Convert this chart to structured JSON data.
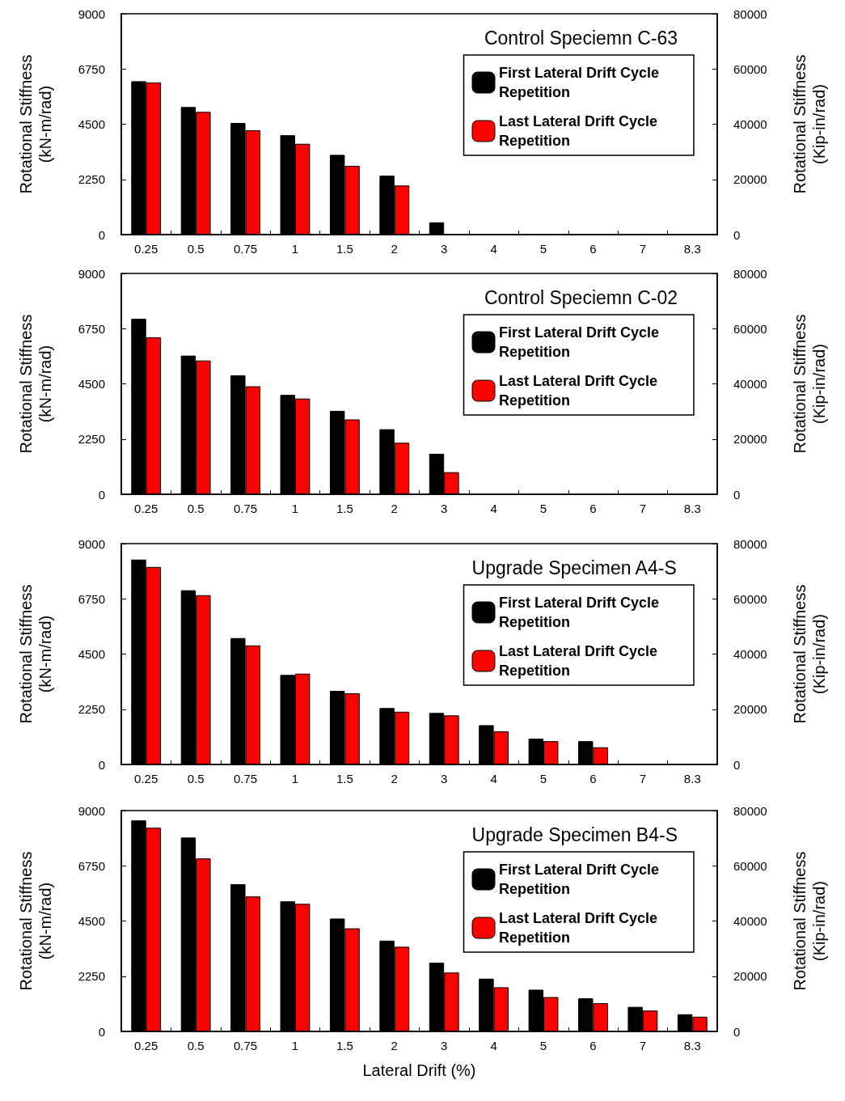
{
  "chart_data": [
    {
      "type": "bar",
      "title": "Control Speciemn C-63",
      "ylabel": "Rotational Stiffness\n(kN-m/rad)",
      "y2label": "Rotational Stiffness\n(Kip-in/rad)",
      "categories": [
        "0.25",
        "0.5",
        "0.75",
        "1",
        "1.5",
        "2",
        "3",
        "4",
        "5",
        "6",
        "7",
        "8.3"
      ],
      "series": [
        {
          "name": "First Lateral Drift Cycle Repetition",
          "color": "#000000",
          "values": [
            6250,
            5200,
            4550,
            4050,
            3250,
            2400,
            500,
            null,
            null,
            null,
            null,
            null
          ]
        },
        {
          "name": "Last Lateral Drift Cycle Repetition",
          "color": "#ff0000",
          "values": [
            6200,
            5000,
            4250,
            3700,
            2800,
            2000,
            null,
            null,
            null,
            null,
            null,
            null
          ]
        }
      ],
      "ylim": [
        0,
        9000
      ],
      "yticks": [
        0,
        2250,
        4500,
        6750,
        9000
      ],
      "y2lim": [
        0,
        80000
      ],
      "y2ticks": [
        0,
        20000,
        40000,
        60000,
        80000
      ],
      "grid": false,
      "legend": "top right"
    },
    {
      "type": "bar",
      "title": "Control Speciemn C-02",
      "ylabel": "Rotational Stiffness\n(kN-m/rad)",
      "y2label": "Rotational Stiffness\n(Kip-in/rad)",
      "categories": [
        "0.25",
        "0.5",
        "0.75",
        "1",
        "1.5",
        "2",
        "3",
        "4",
        "5",
        "6",
        "7",
        "8.3"
      ],
      "series": [
        {
          "name": "First Lateral Drift Cycle Repetition",
          "color": "#000000",
          "values": [
            7150,
            5650,
            4850,
            4050,
            3400,
            2650,
            1650,
            null,
            null,
            null,
            null,
            null
          ]
        },
        {
          "name": "Last Lateral Drift Cycle Repetition",
          "color": "#ff0000",
          "values": [
            6400,
            5450,
            4400,
            3900,
            3050,
            2100,
            900,
            null,
            null,
            null,
            null,
            null
          ]
        }
      ],
      "ylim": [
        0,
        9000
      ],
      "yticks": [
        0,
        2250,
        4500,
        6750,
        9000
      ],
      "y2lim": [
        0,
        80000
      ],
      "y2ticks": [
        0,
        20000,
        40000,
        60000,
        80000
      ],
      "grid": false,
      "legend": "top right"
    },
    {
      "type": "bar",
      "title": "Upgrade Specimen A4-S",
      "ylabel": "Rotational Stiffness\n(kN-m/rad)",
      "y2label": "Rotational Stiffness\n(Kip-in/rad)",
      "categories": [
        "0.25",
        "0.5",
        "0.75",
        "1",
        "1.5",
        "2",
        "3",
        "4",
        "5",
        "6",
        "7",
        "8.3"
      ],
      "series": [
        {
          "name": "First Lateral Drift Cycle Repetition",
          "color": "#000000",
          "values": [
            8350,
            7100,
            5150,
            3650,
            3000,
            2300,
            2100,
            1600,
            1050,
            950,
            null,
            null
          ]
        },
        {
          "name": "Last Lateral Drift Cycle Repetition",
          "color": "#ff0000",
          "values": [
            8050,
            6900,
            4850,
            3700,
            2900,
            2150,
            2000,
            1350,
            950,
            700,
            null,
            null
          ]
        }
      ],
      "ylim": [
        0,
        9000
      ],
      "yticks": [
        0,
        2250,
        4500,
        6750,
        9000
      ],
      "y2lim": [
        0,
        80000
      ],
      "y2ticks": [
        0,
        20000,
        40000,
        60000,
        80000
      ],
      "grid": false,
      "legend": "top right"
    },
    {
      "type": "bar",
      "title": "Upgrade Specimen B4-S",
      "xlabel": "Lateral Drift (%)",
      "ylabel": "Rotational Stiffness\n(kN-m/rad)",
      "y2label": "Rotational Stiffness\n(Kip-in/rad)",
      "categories": [
        "0.25",
        "0.5",
        "0.75",
        "1",
        "1.5",
        "2",
        "3",
        "4",
        "5",
        "6",
        "7",
        "8.3"
      ],
      "series": [
        {
          "name": "First Lateral Drift Cycle Repetition",
          "color": "#000000",
          "values": [
            8600,
            7900,
            6000,
            5300,
            4600,
            3700,
            2800,
            2150,
            1700,
            1350,
            1000,
            700
          ]
        },
        {
          "name": "Last Lateral Drift Cycle Repetition",
          "color": "#ff0000",
          "values": [
            8300,
            7050,
            5500,
            5200,
            4200,
            3450,
            2400,
            1800,
            1400,
            1150,
            850,
            600
          ]
        }
      ],
      "ylim": [
        0,
        9000
      ],
      "yticks": [
        0,
        2250,
        4500,
        6750,
        9000
      ],
      "y2lim": [
        0,
        80000
      ],
      "y2ticks": [
        0,
        20000,
        40000,
        60000,
        80000
      ],
      "grid": false,
      "legend": "top right"
    }
  ]
}
